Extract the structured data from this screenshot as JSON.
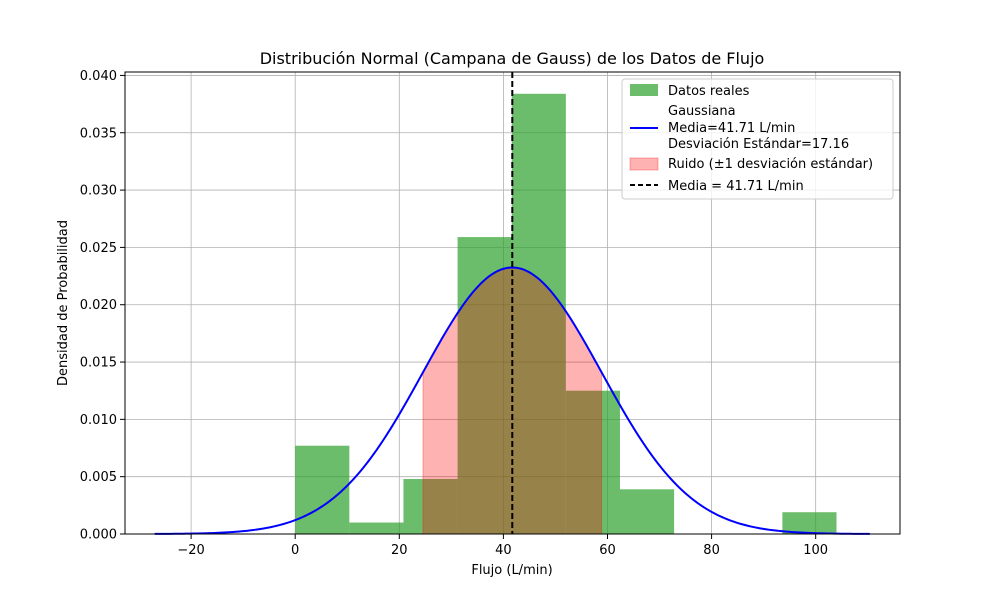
{
  "chart_data": {
    "type": "histogram",
    "title": "Distribución Normal (Campana de Gauss) de los Datos de Flujo",
    "xlabel": "Flujo (L/min)",
    "ylabel": "Densidad de Probabilidad",
    "xlim": [
      -32.7,
      116.2
    ],
    "ylim": [
      0,
      0.0403
    ],
    "xticks": [
      -20,
      0,
      20,
      40,
      60,
      80,
      100
    ],
    "xtick_labels": [
      "−20",
      "0",
      "20",
      "40",
      "60",
      "80",
      "100"
    ],
    "yticks": [
      0,
      0.005,
      0.01,
      0.015,
      0.02,
      0.025,
      0.03,
      0.035,
      0.04
    ],
    "ytick_labels": [
      "0.000",
      "0.005",
      "0.010",
      "0.015",
      "0.020",
      "0.025",
      "0.030",
      "0.035",
      "0.040"
    ],
    "grid": true,
    "legend_position": "top-right",
    "histogram": {
      "name": "Datos reales",
      "color": "#2ca02c",
      "bins": [
        {
          "x0": 0.0,
          "x1": 10.4,
          "density": 0.0077
        },
        {
          "x0": 10.4,
          "x1": 20.8,
          "density": 0.001
        },
        {
          "x0": 20.8,
          "x1": 31.2,
          "density": 0.0048
        },
        {
          "x0": 31.2,
          "x1": 41.6,
          "density": 0.0259
        },
        {
          "x0": 41.6,
          "x1": 52.0,
          "density": 0.0384
        },
        {
          "x0": 52.0,
          "x1": 62.4,
          "density": 0.0125
        },
        {
          "x0": 62.4,
          "x1": 72.8,
          "density": 0.0039
        },
        {
          "x0": 72.8,
          "x1": 83.2,
          "density": 0
        },
        {
          "x0": 83.2,
          "x1": 93.6,
          "density": 0
        },
        {
          "x0": 93.6,
          "x1": 104.0,
          "density": 0.0019
        }
      ]
    },
    "gaussian": {
      "name_lines": [
        "Gaussiana",
        "Media=41.71 L/min",
        "Desviación Estándar=17.16"
      ],
      "mean": 41.71,
      "std": 17.16,
      "x_range": [
        -27.0,
        110.4
      ],
      "color": "#0000ff"
    },
    "noise_band": {
      "name": "Ruido (±1 desviación estándar)",
      "x0": 24.55,
      "x1": 58.87,
      "color": "#ff0000"
    },
    "mean_line": {
      "name": "Media = 41.71 L/min",
      "x": 41.71,
      "color": "#000000"
    }
  }
}
